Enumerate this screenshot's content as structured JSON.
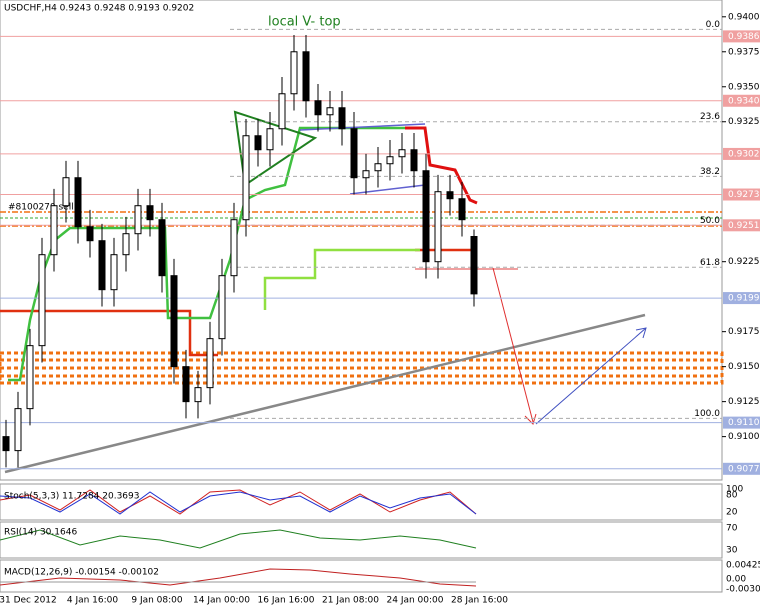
{
  "chart_data": {
    "type": "candlestick",
    "header": "USDCHF,H4  0.9243 0.9248 0.9193 0.9202",
    "annotation": "local V- top",
    "order_label": "#8100270 sell",
    "open": [
      0.91,
      0.909,
      0.912,
      0.9165,
      0.923,
      0.9265,
      0.9285,
      0.925,
      0.924,
      0.9205,
      0.923,
      0.9245,
      0.9265,
      0.9255,
      0.9215,
      0.915,
      0.9125,
      0.9135,
      0.917,
      0.9215,
      0.9255,
      0.9315,
      0.9305,
      0.932,
      0.9345,
      0.9375,
      0.934,
      0.933,
      0.9335,
      0.932,
      0.9285,
      0.929,
      0.9295,
      0.93,
      0.9305,
      0.929,
      0.9225,
      0.9275,
      0.927,
      0.9243
    ],
    "high": [
      0.9112,
      0.9132,
      0.9177,
      0.9242,
      0.9277,
      0.9297,
      0.9297,
      0.9262,
      0.9252,
      0.9242,
      0.9257,
      0.9277,
      0.9277,
      0.9267,
      0.9227,
      0.9162,
      0.9147,
      0.9182,
      0.9227,
      0.9267,
      0.9327,
      0.9327,
      0.9332,
      0.9357,
      0.9387,
      0.9387,
      0.9352,
      0.9347,
      0.9347,
      0.9332,
      0.9302,
      0.9307,
      0.9312,
      0.9317,
      0.9317,
      0.9302,
      0.9287,
      0.9287,
      0.9282,
      0.9248
    ],
    "low": [
      0.9078,
      0.9078,
      0.9108,
      0.9153,
      0.9218,
      0.9253,
      0.9238,
      0.9228,
      0.9193,
      0.9193,
      0.9218,
      0.9233,
      0.9243,
      0.9203,
      0.9138,
      0.9113,
      0.9113,
      0.9123,
      0.9158,
      0.9203,
      0.9243,
      0.9293,
      0.9293,
      0.9308,
      0.9333,
      0.9328,
      0.9318,
      0.9318,
      0.9308,
      0.9273,
      0.9273,
      0.9278,
      0.9283,
      0.9288,
      0.9278,
      0.9213,
      0.9213,
      0.9258,
      0.9243,
      0.9193
    ],
    "close": [
      0.909,
      0.912,
      0.9165,
      0.923,
      0.9265,
      0.9285,
      0.925,
      0.924,
      0.9205,
      0.923,
      0.9245,
      0.9265,
      0.9255,
      0.9215,
      0.915,
      0.9125,
      0.9135,
      0.917,
      0.9215,
      0.9255,
      0.9315,
      0.9305,
      0.932,
      0.9345,
      0.9375,
      0.934,
      0.933,
      0.9335,
      0.932,
      0.9285,
      0.929,
      0.9295,
      0.93,
      0.9305,
      0.929,
      0.9225,
      0.9275,
      0.927,
      0.9255,
      0.9202
    ],
    "ylim": [
      0.9069,
      0.9412
    ],
    "yticks": [
      {
        "value": 0.94,
        "label": "0.9400"
      },
      {
        "value": 0.9375,
        "label": "0.9375"
      },
      {
        "value": 0.935,
        "label": "0.9350"
      },
      {
        "value": 0.9325,
        "label": "0.9325"
      },
      {
        "value": 0.9225,
        "label": "0.9225"
      },
      {
        "value": 0.9175,
        "label": "0.9175"
      },
      {
        "value": 0.915,
        "label": "0.9150"
      },
      {
        "value": 0.9125,
        "label": "0.9125"
      },
      {
        "value": 0.91,
        "label": "0.9100"
      }
    ],
    "resistance_levels": [
      {
        "value": 0.9386,
        "label": "0.9386"
      },
      {
        "value": 0.934,
        "label": "0.9340"
      },
      {
        "value": 0.9302,
        "label": "0.9302"
      },
      {
        "value": 0.9273,
        "label": "0.9273"
      },
      {
        "value": 0.9251,
        "label": "0.9251"
      }
    ],
    "support_levels": [
      {
        "value": 0.9199,
        "label": "0.9199"
      },
      {
        "value": 0.911,
        "label": "0.9110"
      },
      {
        "value": 0.9077,
        "label": "0.9077"
      }
    ],
    "fib_levels": [
      {
        "value": 0.9391,
        "label": "0.0"
      },
      {
        "value": 0.9325,
        "label": "23.6"
      },
      {
        "value": 0.9286,
        "label": "38.2"
      },
      {
        "value": 0.9251,
        "label": "50.0"
      },
      {
        "value": 0.9221,
        "label": "61.8"
      },
      {
        "value": 0.9113,
        "label": "100.0"
      }
    ],
    "categories": [
      "31 Dec 2012",
      "4 Jan 16:00",
      "9 Jan 08:00",
      "14 Jan 00:00",
      "16 Jan 16:00",
      "21 Jan 08:00",
      "24 Jan 00:00",
      "28 Jan 16:00"
    ],
    "stoch": {
      "label": "Stoch(5,3,3) 11.7284 20.3693",
      "ticks": [
        "100",
        "80",
        "20"
      ]
    },
    "rsi": {
      "label": "RSI(14) 30.1646",
      "ticks": [
        "70",
        "30"
      ]
    },
    "macd": {
      "label": "MACD(12,26,9) -0.00154 -0.00102",
      "ticks": [
        "0.00425",
        "0.00",
        "-0.00304"
      ]
    }
  }
}
